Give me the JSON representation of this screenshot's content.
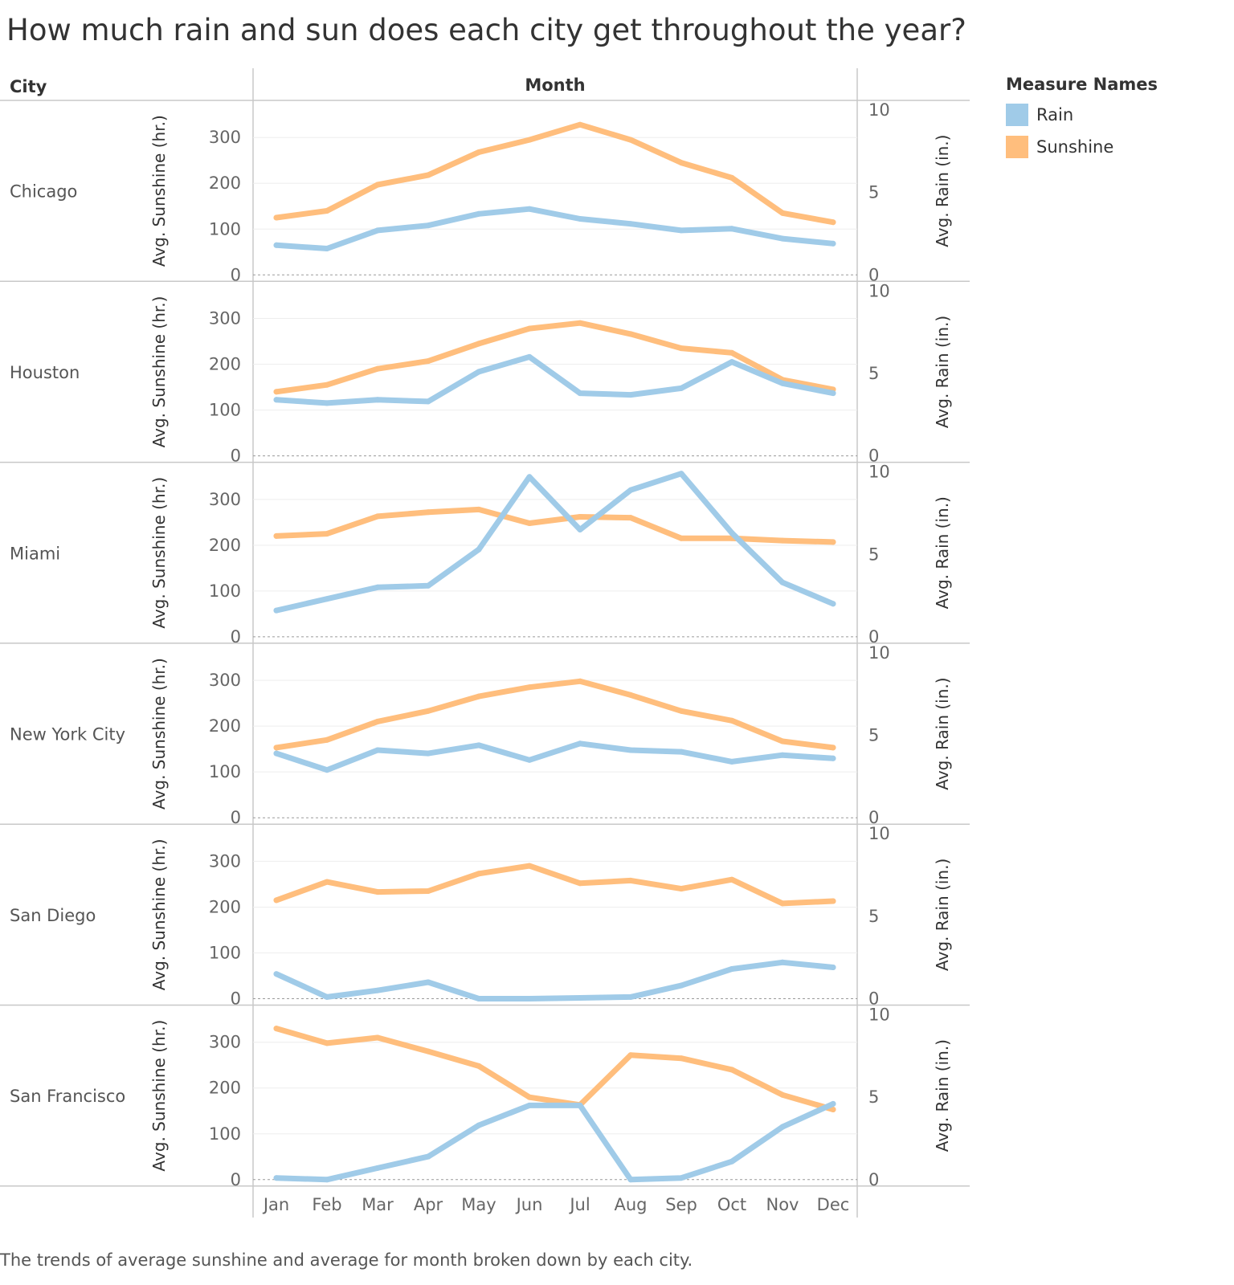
{
  "title": "How much rain and sun does each city get throughout the year?",
  "caption": "The trends of average sunshine and average for month broken down by each city.",
  "headers": {
    "city": "City",
    "month": "Month"
  },
  "legend": {
    "title": "Measure Names",
    "items": [
      {
        "label": "Rain",
        "color": "#a0cbe8"
      },
      {
        "label": "Sunshine",
        "color": "#ffbe7d"
      }
    ]
  },
  "chart_data": {
    "type": "line",
    "categories": [
      "Jan",
      "Feb",
      "Mar",
      "Apr",
      "May",
      "Jun",
      "Jul",
      "Aug",
      "Sep",
      "Oct",
      "Nov",
      "Dec"
    ],
    "left_axis": {
      "label": "Avg. Sunshine (hr.)",
      "ylim": [
        0,
        360
      ],
      "ticks": [
        0,
        100,
        200,
        300
      ]
    },
    "right_axis": {
      "label": "Avg. Rain (in.)",
      "ylim": [
        0,
        10
      ],
      "ticks": [
        0,
        5,
        10
      ]
    },
    "grid": true,
    "legend_position": "top-right",
    "panels": [
      {
        "city": "Chicago",
        "series": [
          {
            "name": "Sunshine",
            "axis": "left",
            "values": [
              125,
              140,
              197,
              218,
              268,
              295,
              328,
              295,
              245,
              212,
              135,
              115
            ]
          },
          {
            "name": "Rain",
            "axis": "right",
            "values": [
              1.8,
              1.6,
              2.7,
              3.0,
              3.7,
              4.0,
              3.4,
              3.1,
              2.7,
              2.8,
              2.2,
              1.9
            ]
          }
        ]
      },
      {
        "city": "Houston",
        "series": [
          {
            "name": "Sunshine",
            "axis": "left",
            "values": [
              140,
              155,
              190,
              207,
              245,
              278,
              290,
              266,
              235,
              225,
              166,
              145
            ]
          },
          {
            "name": "Rain",
            "axis": "right",
            "values": [
              3.4,
              3.2,
              3.4,
              3.3,
              5.1,
              6.0,
              3.8,
              3.7,
              4.1,
              5.7,
              4.4,
              3.8
            ]
          }
        ]
      },
      {
        "city": "Miami",
        "series": [
          {
            "name": "Sunshine",
            "axis": "left",
            "values": [
              220,
              225,
              263,
              272,
              278,
              248,
              262,
              260,
              215,
              215,
              210,
              207
            ]
          },
          {
            "name": "Rain",
            "axis": "right",
            "values": [
              1.6,
              2.3,
              3.0,
              3.1,
              5.3,
              9.7,
              6.5,
              8.9,
              9.9,
              6.3,
              3.3,
              2.0
            ]
          }
        ]
      },
      {
        "city": "New York City",
        "series": [
          {
            "name": "Sunshine",
            "axis": "left",
            "values": [
              153,
              170,
              210,
              233,
              265,
              285,
              298,
              268,
              233,
              212,
              167,
              153
            ]
          },
          {
            "name": "Rain",
            "axis": "right",
            "values": [
              3.9,
              2.9,
              4.1,
              3.9,
              4.4,
              3.5,
              4.5,
              4.1,
              4.0,
              3.4,
              3.8,
              3.6
            ]
          }
        ]
      },
      {
        "city": "San Diego",
        "series": [
          {
            "name": "Sunshine",
            "axis": "left",
            "values": [
              215,
              255,
              233,
              235,
              273,
              290,
              252,
              258,
              240,
              260,
              208,
              213
            ]
          },
          {
            "name": "Rain",
            "axis": "right",
            "values": [
              1.5,
              0.1,
              0.5,
              1.0,
              0.0,
              0.0,
              0.05,
              0.1,
              0.8,
              1.8,
              2.2,
              1.9
            ]
          }
        ]
      },
      {
        "city": "San Francisco",
        "series": [
          {
            "name": "Sunshine",
            "axis": "left",
            "values": [
              330,
              298,
              310,
              280,
              248,
              180,
              163,
              272,
              265,
              240,
              185,
              153
            ]
          },
          {
            "name": "Rain",
            "axis": "right",
            "values": [
              0.1,
              0.0,
              0.7,
              1.4,
              3.3,
              4.5,
              4.5,
              0.0,
              0.1,
              1.1,
              3.2,
              4.6
            ]
          }
        ]
      }
    ]
  }
}
